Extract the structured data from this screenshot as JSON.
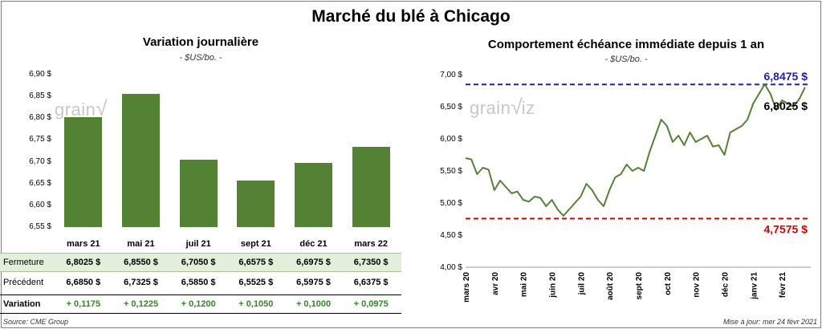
{
  "title": "Marché du blé à Chicago",
  "watermark": "grainwiz",
  "left": {
    "title": "Variation journalière",
    "unit": "- $US/bo. -"
  },
  "right": {
    "title": "Comportement échéance immédiate depuis 1 an",
    "unit": "- $US/bo. -"
  },
  "table": {
    "rows": [
      {
        "label": "Fermeture",
        "values": [
          "6,8025 $",
          "6,8550 $",
          "6,7050 $",
          "6,6575 $",
          "6,6975 $",
          "6,7350 $"
        ]
      },
      {
        "label": "Précédent",
        "values": [
          "6,6850 $",
          "6,7325 $",
          "6,5850 $",
          "6,5525 $",
          "6,5975 $",
          "6,6375 $"
        ]
      },
      {
        "label": "Variation",
        "values": [
          "+ 0,1175",
          "+ 0,1225",
          "+ 0,1200",
          "+ 0,1050",
          "+ 0,1000",
          "+ 0,0975"
        ]
      }
    ]
  },
  "footer": {
    "source": "Source: CME Group",
    "updated": "Mise à jour: mer 24 févr 2021"
  },
  "colors": {
    "bar": "#548235",
    "line": "#548235",
    "high": "#1f1fb4",
    "low": "#e00000",
    "highlight_row": "#e2efda",
    "variation": "#2e8b1e"
  },
  "chart_data": [
    {
      "type": "bar",
      "title": "Variation journalière",
      "subtitle": "- $US/bo. -",
      "categories": [
        "mars 21",
        "mai 21",
        "juil 21",
        "sept 21",
        "déc 21",
        "mars 22"
      ],
      "values": [
        6.8025,
        6.855,
        6.705,
        6.6575,
        6.6975,
        6.735
      ],
      "ylim": [
        6.55,
        6.9
      ],
      "yticks": [
        "6,55 $",
        "6,60 $",
        "6,65 $",
        "6,70 $",
        "6,75 $",
        "6,80 $",
        "6,85 $",
        "6,90 $"
      ],
      "grid": false
    },
    {
      "type": "line",
      "title": "Comportement échéance immédiate depuis 1 an",
      "subtitle": "- $US/bo. -",
      "ylim": [
        4.0,
        7.0
      ],
      "yticks": [
        "4,00 $",
        "4,50 $",
        "5,00 $",
        "5,50 $",
        "6,00 $",
        "6,50 $",
        "7,00 $"
      ],
      "xticks": [
        "mars 20",
        "avr 20",
        "mai 20",
        "juin 20",
        "juil 20",
        "août 20",
        "sept 20",
        "oct 20",
        "nov 20",
        "déc 20",
        "janv 21",
        "févr 21"
      ],
      "x_months": [
        0,
        0.2,
        0.4,
        0.6,
        0.8,
        1.0,
        1.2,
        1.4,
        1.6,
        1.8,
        2.0,
        2.2,
        2.4,
        2.6,
        2.8,
        3.0,
        3.2,
        3.4,
        3.6,
        3.8,
        4.0,
        4.2,
        4.4,
        4.6,
        4.8,
        5.0,
        5.2,
        5.4,
        5.6,
        5.8,
        6.0,
        6.2,
        6.4,
        6.6,
        6.8,
        7.0,
        7.2,
        7.4,
        7.6,
        7.8,
        8.0,
        8.2,
        8.4,
        8.6,
        8.8,
        9.0,
        9.2,
        9.4,
        9.6,
        9.8,
        10.0,
        10.2,
        10.4,
        10.6,
        10.8,
        11.0,
        11.2,
        11.4,
        11.6,
        11.8
      ],
      "values": [
        5.7,
        5.68,
        5.45,
        5.55,
        5.52,
        5.2,
        5.35,
        5.25,
        5.15,
        5.18,
        5.05,
        5.02,
        5.1,
        5.08,
        4.95,
        5.05,
        4.9,
        4.8,
        4.9,
        5.0,
        5.1,
        5.3,
        5.2,
        5.05,
        4.95,
        5.2,
        5.4,
        5.45,
        5.6,
        5.5,
        5.55,
        5.5,
        5.8,
        6.05,
        6.3,
        6.2,
        5.95,
        6.05,
        5.9,
        6.1,
        5.95,
        6.0,
        6.05,
        5.88,
        5.9,
        5.75,
        6.1,
        6.15,
        6.2,
        6.3,
        6.55,
        6.7,
        6.85,
        6.7,
        6.45,
        6.6,
        6.55,
        6.5,
        6.62,
        6.8025
      ],
      "reference_lines": [
        {
          "label": "6,8475 $",
          "value": 6.8475
        },
        {
          "label": "4,7575 $",
          "value": 4.7575
        }
      ],
      "last_label": "6,8025 $",
      "grid": false
    }
  ]
}
